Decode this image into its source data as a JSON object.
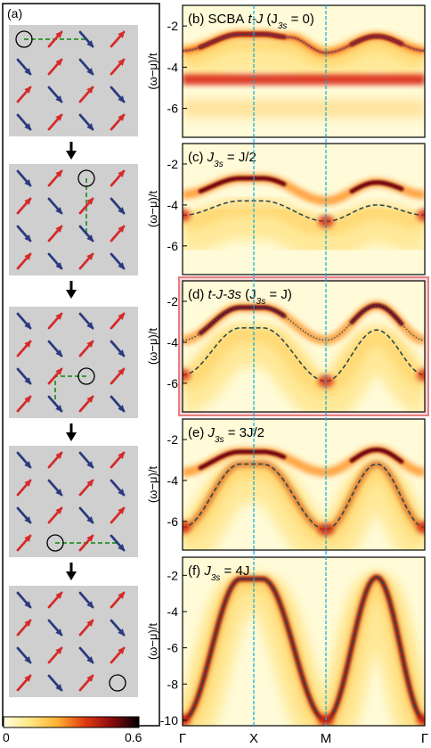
{
  "panel_a": {
    "label": "(a)",
    "spin_colors": {
      "up": "#d62a2a",
      "down": "#2b3a7e",
      "hole": "#000000",
      "path": "#3a9a3a",
      "background": "#cfcfcf"
    },
    "grids": [
      {
        "rows": [
          [
            "hole",
            "up",
            "down",
            "up"
          ],
          [
            "down",
            "up",
            "down",
            "up"
          ],
          [
            "up",
            "down",
            "up",
            "down"
          ],
          [
            "down",
            "up",
            "down",
            "up"
          ]
        ],
        "hole": [
          0,
          0
        ],
        "path": [
          [
            0,
            0
          ],
          [
            0,
            2
          ]
        ]
      },
      {
        "rows": [
          [
            "down",
            "up",
            "hole",
            "up"
          ],
          [
            "up",
            "down",
            "up",
            "down"
          ],
          [
            "down",
            "up",
            "down",
            "up"
          ],
          [
            "up",
            "down",
            "up",
            "down"
          ]
        ],
        "hole": [
          0,
          2
        ],
        "path": [
          [
            0,
            2
          ],
          [
            2,
            2
          ]
        ]
      },
      {
        "rows": [
          [
            "down",
            "up",
            "down",
            "up"
          ],
          [
            "up",
            "down",
            "up",
            "down"
          ],
          [
            "down",
            "up",
            "hole",
            "up"
          ],
          [
            "up",
            "down",
            "up",
            "down"
          ]
        ],
        "hole": [
          2,
          2
        ],
        "path": [
          [
            2,
            2
          ],
          [
            2,
            1
          ],
          [
            3,
            1
          ]
        ]
      },
      {
        "rows": [
          [
            "down",
            "up",
            "down",
            "up"
          ],
          [
            "up",
            "down",
            "up",
            "down"
          ],
          [
            "down",
            "up",
            "down",
            "up"
          ],
          [
            "up",
            "hole",
            "up",
            "down"
          ]
        ],
        "hole": [
          3,
          1
        ],
        "path": [
          [
            3,
            1
          ],
          [
            3,
            3
          ]
        ]
      },
      {
        "rows": [
          [
            "down",
            "up",
            "down",
            "up"
          ],
          [
            "up",
            "down",
            "up",
            "down"
          ],
          [
            "down",
            "up",
            "down",
            "up"
          ],
          [
            "up",
            "down",
            "up",
            "hole"
          ]
        ],
        "hole": [
          3,
          3
        ],
        "path": []
      }
    ]
  },
  "colorbar": {
    "min_label": "0",
    "max_label": "0.6",
    "stops": [
      "#fffde0",
      "#ffe680",
      "#ffb030",
      "#e03a10",
      "#8a0c10",
      "#000000"
    ]
  },
  "x_ticks": [
    "Γ",
    "X",
    "M",
    "Γ"
  ],
  "ylabel": "(ω−μ)/t",
  "chart_data": [
    {
      "type": "heatmap",
      "label": "(b) SCBA",
      "label_italic": " t-J ",
      "label_tail": "(J",
      "label_sub": "3s",
      "label_end": " = 0)",
      "ylim": [
        -7.4,
        -1.0
      ],
      "yticks": [
        "-2",
        "-4",
        "-6"
      ],
      "ytick_values": [
        -2,
        -4,
        -6
      ],
      "qp_band": {
        "at_gamma": -3.2,
        "at_X": -2.4,
        "at_mid_XM": -2.55,
        "at_M": -3.3,
        "at_mid_MG": -2.5
      },
      "incoherent_level": -4.6,
      "dash_style": "dotted",
      "highlight": false
    },
    {
      "type": "heatmap",
      "label": "(c) ",
      "label_italic": "J",
      "label_sub": "3s",
      "label_end": " = J/2",
      "ylim": [
        -7.4,
        -1.0
      ],
      "yticks": [
        "-2",
        "-4",
        "-6"
      ],
      "ytick_values": [
        -2,
        -4,
        -6
      ],
      "qp_band": {
        "at_gamma": -3.5,
        "at_X": -2.7,
        "at_M": -3.8,
        "at_mid_MG": -2.9
      },
      "dashed_dispersion": {
        "at_gamma": -4.5,
        "at_X": -3.8,
        "at_M": -4.8,
        "at_mid_MG": -4.0
      },
      "highlight": false
    },
    {
      "type": "heatmap",
      "label": "(d) ",
      "label_italic": "t-J-3s",
      "label_tail": " (J",
      "label_sub": "3s",
      "label_end": " = J)",
      "ylim": [
        -7.4,
        -1.0
      ],
      "yticks": [
        "-2",
        "-4",
        "-6"
      ],
      "ytick_values": [
        -2,
        -4,
        -6
      ],
      "qp_band": {
        "at_gamma": -3.9,
        "at_X": -2.3,
        "at_M": -3.9,
        "at_mid_MG": -2.2
      },
      "dashed_dispersion": {
        "at_gamma": -5.6,
        "at_X": -3.3,
        "at_M": -5.9,
        "at_mid_MG": -3.4
      },
      "highlight": true
    },
    {
      "type": "heatmap",
      "label": "(e) ",
      "label_italic": "J",
      "label_sub": "3s",
      "label_end": " = 3J/2",
      "ylim": [
        -7.4,
        -1.0
      ],
      "yticks": [
        "-2",
        "-4",
        "-6"
      ],
      "ytick_values": [
        -2,
        -4,
        -6
      ],
      "qp_band": {
        "at_X": -2.6,
        "at_mid_MG": -2.5
      },
      "dashed_dispersion": {
        "at_gamma": -6.3,
        "at_X": -3.2,
        "at_M": -6.4,
        "at_mid_MG": -3.2
      },
      "highlight": false
    },
    {
      "type": "heatmap",
      "label": "(f) ",
      "label_italic": "J",
      "label_sub": "3s",
      "label_end": " = 4J",
      "ylim": [
        -10.3,
        -1.0
      ],
      "yticks": [
        "-2",
        "-4",
        "-6",
        "-8",
        "-10"
      ],
      "ytick_values": [
        -2,
        -4,
        -6,
        -8,
        -10
      ],
      "dashed_dispersion": {
        "at_gamma": -10.0,
        "at_X": -2.2,
        "at_M": -10.0,
        "at_mid_MG": -2.1
      },
      "highlight": false
    }
  ]
}
